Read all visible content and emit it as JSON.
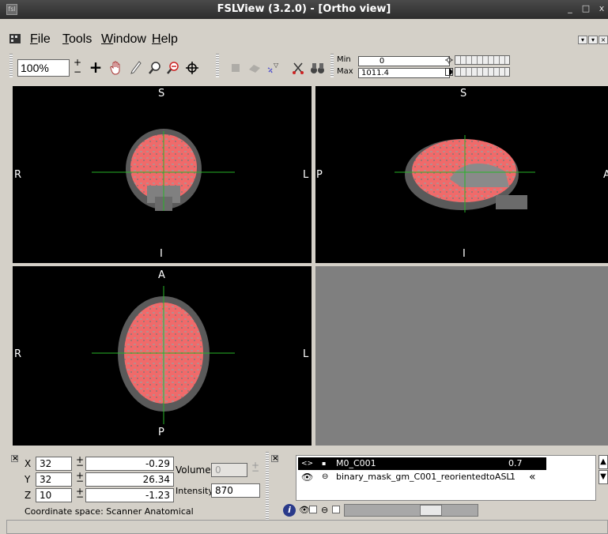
{
  "window": {
    "title": "FSLView (3.2.0) - [Ortho view]",
    "buttons": {
      "minimize": "_",
      "maximize": "□",
      "close": "x"
    }
  },
  "menu": {
    "items": [
      {
        "label": "File",
        "accel": "F",
        "rest": "ile"
      },
      {
        "label": "Tools",
        "accel": "T",
        "rest": "ools"
      },
      {
        "label": "Window",
        "accel": "W",
        "rest": "indow"
      },
      {
        "label": "Help",
        "accel": "H",
        "rest": "elp"
      }
    ]
  },
  "toolbar": {
    "zoom": "100%",
    "spin_plus": "+",
    "spin_minus": "−",
    "tools": [
      "crosshair-icon",
      "hand-icon",
      "pencil-icon",
      "magnifier-icon",
      "zoom-undo-icon",
      "target-icon",
      "fill-icon",
      "erase-icon",
      "star-icon",
      "scissors-icon",
      "binoculars-icon"
    ],
    "min_label": "Min",
    "min_value": "0",
    "max_label": "Max",
    "max_value": "1011.4"
  },
  "views": {
    "coronal": {
      "top": "S",
      "bottom": "I",
      "left": "R",
      "right": "L"
    },
    "sagittal": {
      "top": "S",
      "bottom": "I",
      "left": "P",
      "right": "A"
    },
    "axial": {
      "top": "A",
      "bottom": "P",
      "left": "R",
      "right": "L"
    }
  },
  "coords": {
    "x_label": "X",
    "x_voxel": "32",
    "x_world": "-0.29",
    "y_label": "Y",
    "y_voxel": "32",
    "y_world": "26.34",
    "z_label": "Z",
    "z_voxel": "10",
    "z_world": "-1.23",
    "spin_plus": "+",
    "spin_minus": "−",
    "volume_label": "Volume",
    "volume_value": "0",
    "intensity_label": "Intensity",
    "intensity_value": "870",
    "coordinate_space": "Coordinate space: Scanner Anatomical"
  },
  "layers": [
    {
      "name": "M0_C001",
      "value": "0.7",
      "selected": true
    },
    {
      "name": "binary_mask_gm_C001_reorientedtoASL",
      "value": "1",
      "selected": false
    }
  ],
  "colors": {
    "crosshair": "#27b527",
    "overlay": "#f06a6a",
    "titlebar": "#333333",
    "panel": "#d4d0c8"
  }
}
